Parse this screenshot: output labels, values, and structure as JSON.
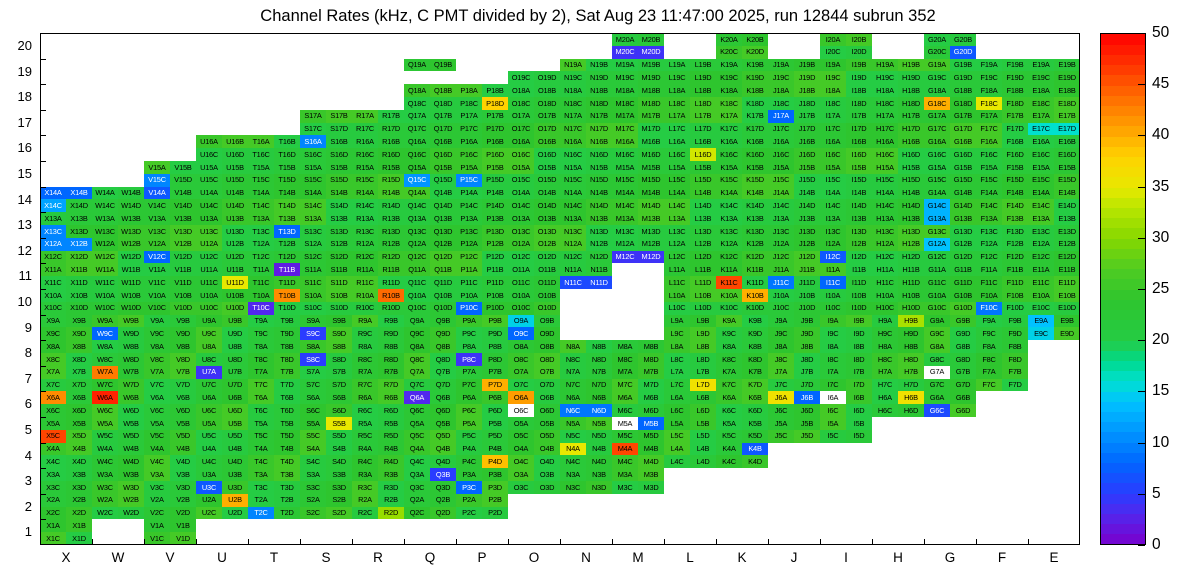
{
  "title": "Channel Rates (kHz, C PMT divided by 2), Sat Aug 23 11:47:00 2025, run 12844 subrun 352",
  "axis": {
    "x_tick_labels": [
      "X",
      "W",
      "V",
      "U",
      "T",
      "S",
      "R",
      "Q",
      "P",
      "O",
      "N",
      "M",
      "L",
      "K",
      "J",
      "I",
      "H",
      "G",
      "F",
      "E"
    ],
    "y_tick_labels": [
      "1",
      "2",
      "3",
      "4",
      "5",
      "6",
      "7",
      "8",
      "9",
      "10",
      "11",
      "12",
      "13",
      "14",
      "15",
      "16",
      "17",
      "18",
      "19",
      "20"
    ]
  },
  "colorbar": {
    "min": 0,
    "max": 50,
    "ticks": [
      0,
      5,
      10,
      15,
      20,
      25,
      30,
      35,
      40,
      45,
      50
    ]
  },
  "chart_data": {
    "type": "heatmap",
    "title": "Channel Rates (kHz, C PMT divided by 2), Sat Aug 23 11:47:00 2025, run 12844 subrun 352",
    "unit": "kHz",
    "value_range": [
      0,
      50
    ],
    "columns": [
      "X",
      "W",
      "V",
      "U",
      "T",
      "S",
      "R",
      "Q",
      "P",
      "O",
      "N",
      "M",
      "L",
      "K",
      "J",
      "I",
      "H",
      "G",
      "F",
      "E"
    ],
    "rows": [
      1,
      2,
      3,
      4,
      5,
      6,
      7,
      8,
      9,
      10,
      11,
      12,
      13,
      14,
      15,
      16,
      17,
      18,
      19,
      20
    ],
    "quad_suffixes": [
      "A",
      "B",
      "C",
      "D"
    ],
    "default_range": [
      20,
      26
    ],
    "presence": {
      "1": [
        "X",
        "V"
      ],
      "2": [
        "X",
        "W",
        "V",
        "U",
        "T",
        "S",
        "R",
        "Q",
        "P"
      ],
      "3": [
        "X",
        "W",
        "V",
        "U",
        "T",
        "S",
        "R",
        "Q",
        "P",
        "O",
        "N",
        "M"
      ],
      "4": [
        "X",
        "W",
        "V",
        "U",
        "T",
        "S",
        "R",
        "Q",
        "P",
        "O",
        "N",
        "M",
        "L",
        "K"
      ],
      "5": [
        "X",
        "W",
        "V",
        "U",
        "T",
        "S",
        "R",
        "Q",
        "P",
        "O",
        "N",
        "M",
        "L",
        "K",
        "J",
        "I"
      ],
      "6": [
        "X",
        "W",
        "V",
        "U",
        "T",
        "S",
        "R",
        "Q",
        "P",
        "O",
        "N",
        "M",
        "L",
        "K",
        "J",
        "I",
        "H",
        "G"
      ],
      "7": [
        "X",
        "W",
        "V",
        "U",
        "T",
        "S",
        "R",
        "Q",
        "P",
        "O",
        "N",
        "M",
        "L",
        "K",
        "J",
        "I",
        "H",
        "G",
        "F"
      ],
      "8": [
        "X",
        "W",
        "V",
        "U",
        "T",
        "S",
        "R",
        "Q",
        "P",
        "O",
        "N",
        "M",
        "L",
        "K",
        "J",
        "I",
        "H",
        "G",
        "F"
      ],
      "9": [
        "X",
        "W",
        "V",
        "U",
        "T",
        "S",
        "R",
        "Q",
        "P",
        "O",
        "L",
        "K",
        "J",
        "I",
        "H",
        "G",
        "F",
        "E"
      ],
      "10": [
        "X",
        "W",
        "V",
        "U",
        "T",
        "S",
        "R",
        "Q",
        "P",
        "O",
        "L",
        "K",
        "J",
        "I",
        "H",
        "G",
        "F",
        "E"
      ],
      "11": [
        "X",
        "W",
        "V",
        "U",
        "T",
        "S",
        "R",
        "Q",
        "P",
        "O",
        "N",
        "L",
        "K",
        "J",
        "I",
        "H",
        "G",
        "F",
        "E"
      ],
      "12": [
        "X",
        "W",
        "V",
        "U",
        "T",
        "S",
        "R",
        "Q",
        "P",
        "O",
        "N",
        "M",
        "L",
        "K",
        "J",
        "I",
        "H",
        "G",
        "F",
        "E"
      ],
      "13": [
        "X",
        "W",
        "V",
        "U",
        "T",
        "S",
        "R",
        "Q",
        "P",
        "O",
        "N",
        "M",
        "L",
        "K",
        "J",
        "I",
        "H",
        "G",
        "F",
        "E"
      ],
      "14": [
        "X",
        "W",
        "V",
        "U",
        "T",
        "S",
        "R",
        "Q",
        "P",
        "O",
        "N",
        "M",
        "L",
        "K",
        "J",
        "I",
        "H",
        "G",
        "F",
        "E"
      ],
      "15": [
        "V",
        "U",
        "T",
        "S",
        "R",
        "Q",
        "P",
        "O",
        "N",
        "M",
        "L",
        "K",
        "J",
        "I",
        "H",
        "G",
        "F",
        "E"
      ],
      "16": [
        "U",
        "T",
        "S",
        "R",
        "Q",
        "P",
        "O",
        "N",
        "M",
        "L",
        "K",
        "J",
        "I",
        "H",
        "G",
        "F",
        "E"
      ],
      "17": [
        "S",
        "R",
        "Q",
        "P",
        "O",
        "N",
        "M",
        "L",
        "K",
        "J",
        "I",
        "H",
        "G",
        "F",
        "E"
      ],
      "18": [
        "Q",
        "P",
        "O",
        "N",
        "M",
        "L",
        "K",
        "J",
        "I",
        "H",
        "G",
        "F",
        "E"
      ],
      "19": [
        "Q",
        "O",
        "N",
        "M",
        "L",
        "K",
        "J",
        "I",
        "H",
        "G",
        "F",
        "E"
      ],
      "20": [
        "M",
        "K",
        "I",
        "G"
      ]
    },
    "partial_cells": {
      "Q19": [
        "A",
        "B"
      ],
      "O19": [
        "C",
        "D"
      ]
    },
    "overrides": {
      "X14A": 8,
      "X14B": 8,
      "X14C": 12,
      "X13C": 10,
      "X12A": 10,
      "X12B": 10,
      "X6A": 42,
      "X5C": 46,
      "W9C": 8,
      "W7A": 43,
      "W6A": 48,
      "V15C": 10,
      "V14A": 7,
      "V12C": 8,
      "U11D": 35,
      "U7A": 4,
      "U3C": 7,
      "U2B": 40,
      "T13D": 8,
      "T11B": 2,
      "T10B": 42,
      "T10C": 3,
      "T2C": 10,
      "S16A": 10,
      "S9C": 5,
      "S8C": 5,
      "S5B": 35,
      "R10B": 44,
      "R2D": 31,
      "Q15C": 11,
      "Q6A": 3,
      "Q3B": 5,
      "P18D": 38,
      "P15C": 10,
      "P10C": 8,
      "P8C": 4,
      "P7D": 40,
      "P4D": 39,
      "P3C": 8,
      "O9A": 15,
      "O9C": 8,
      "O6A": 41,
      "O6C": 0,
      "N11C": 6,
      "N11D": 6,
      "N6C": 9,
      "N6D": 9,
      "N4A": 35,
      "M20C": 4,
      "M20D": 4,
      "M12C": 4,
      "M12D": 4,
      "M5A": 0,
      "M5B": 8,
      "M4A": 46,
      "L16D": 34,
      "L7D": 36,
      "K11C": 46,
      "K10B": 40,
      "K4B": 7,
      "J17A": 8,
      "J11C": 9,
      "J6A": 36,
      "J6B": 8,
      "I12C": 7,
      "I11C": 8,
      "I6A": 0,
      "H9B": 32,
      "H6B": 36,
      "G20D": 7,
      "G18C": 40,
      "G14C": 13,
      "G13A": 13,
      "G12A": 14,
      "G7A": 0,
      "G6C": 6,
      "F18C": 35,
      "F10C": 9,
      "E17C": 16,
      "E17D": 16,
      "E9A": 14,
      "E9C": 15
    },
    "palette": [
      [
        0,
        "#7a00cc"
      ],
      [
        3,
        "#5128ee"
      ],
      [
        5,
        "#2a3cff"
      ],
      [
        8,
        "#0066ff"
      ],
      [
        11,
        "#0095ff"
      ],
      [
        14,
        "#00c2ff"
      ],
      [
        16,
        "#00e0cf"
      ],
      [
        18,
        "#00d98a"
      ],
      [
        20,
        "#25cc44"
      ],
      [
        24,
        "#2ec52e"
      ],
      [
        27,
        "#50cc22"
      ],
      [
        30,
        "#86d800"
      ],
      [
        33,
        "#b9e600"
      ],
      [
        35,
        "#e8e800"
      ],
      [
        38,
        "#ffd200"
      ],
      [
        41,
        "#ff9d00"
      ],
      [
        44,
        "#ff6a00"
      ],
      [
        47,
        "#ff3300"
      ],
      [
        50,
        "#ff0000"
      ]
    ],
    "legend_position": "right",
    "grid": false
  }
}
